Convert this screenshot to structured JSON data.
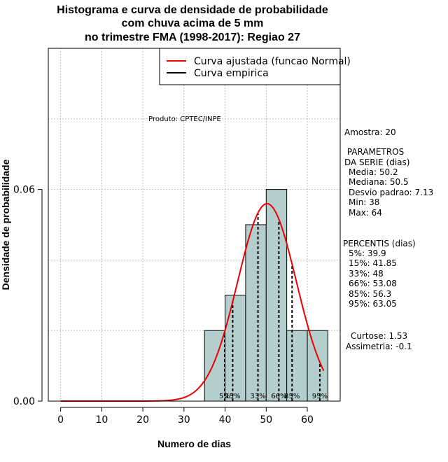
{
  "chart_data": {
    "type": "histogram",
    "title": [
      "Histograma e curva de densidade de probabilidade",
      "com chuva acima de 5 mm",
      "no trimestre FMA (1998-2017): Regiao 27"
    ],
    "xlabel": "Numero de dias",
    "ylabel": "Densidade de probabilidade",
    "xlim": [
      -3,
      68
    ],
    "ylim": [
      0,
      0.1
    ],
    "xticks": [
      0,
      10,
      20,
      30,
      40,
      50,
      60
    ],
    "yticks": [
      {
        "value": 0,
        "label": "0.00"
      },
      {
        "value": 0.06,
        "label": "0.06"
      }
    ],
    "grid": true,
    "bins": [
      {
        "x0": 35,
        "x1": 40,
        "density": 0.02
      },
      {
        "x0": 40,
        "x1": 45,
        "density": 0.03
      },
      {
        "x0": 45,
        "x1": 50,
        "density": 0.05
      },
      {
        "x0": 50,
        "x1": 55,
        "density": 0.06
      },
      {
        "x0": 55,
        "x1": 60,
        "density": 0.02
      },
      {
        "x0": 60,
        "x1": 65,
        "density": 0.02
      }
    ],
    "bar_color": "#b4cece",
    "normal_curve": {
      "mean": 50.2,
      "sd": 7.13,
      "x_from": 0,
      "x_to": 64,
      "color": "#ee0000"
    },
    "percentile_lines": [
      {
        "x": 39.9,
        "label": "5%"
      },
      {
        "x": 41.85,
        "label": "15%"
      },
      {
        "x": 48,
        "label": "33%"
      },
      {
        "x": 53.08,
        "label": "66%"
      },
      {
        "x": 56.3,
        "label": "85%"
      },
      {
        "x": 63.05,
        "label": "95%"
      }
    ],
    "legend": {
      "position": "top-right",
      "entries": [
        {
          "label": "Curva ajustada (funcao Normal)",
          "color": "#ee0000"
        },
        {
          "label": "Curva empirica",
          "color": "#000000"
        }
      ]
    },
    "annotation": "Produto: CPTEC/INPE"
  },
  "stats": {
    "amostra": "Amostra: 20",
    "parametros_title": [
      " PARAMETROS",
      "DA SERIE (dias)"
    ],
    "parametros": [
      "Media: 50.2",
      "Mediana: 50.5",
      "Desvio padrao: 7.13",
      "Min: 38",
      "Max: 64"
    ],
    "percentis_title": "PERCENTIS (dias)",
    "percentis": [
      "5%: 39.9",
      "15%: 41.85",
      "33%: 48",
      "66%: 53.08",
      "85%: 56.3",
      "95%: 63.05"
    ],
    "curtose": "Curtose: 1.53",
    "assimetria": "Assimetria: -0.1"
  }
}
